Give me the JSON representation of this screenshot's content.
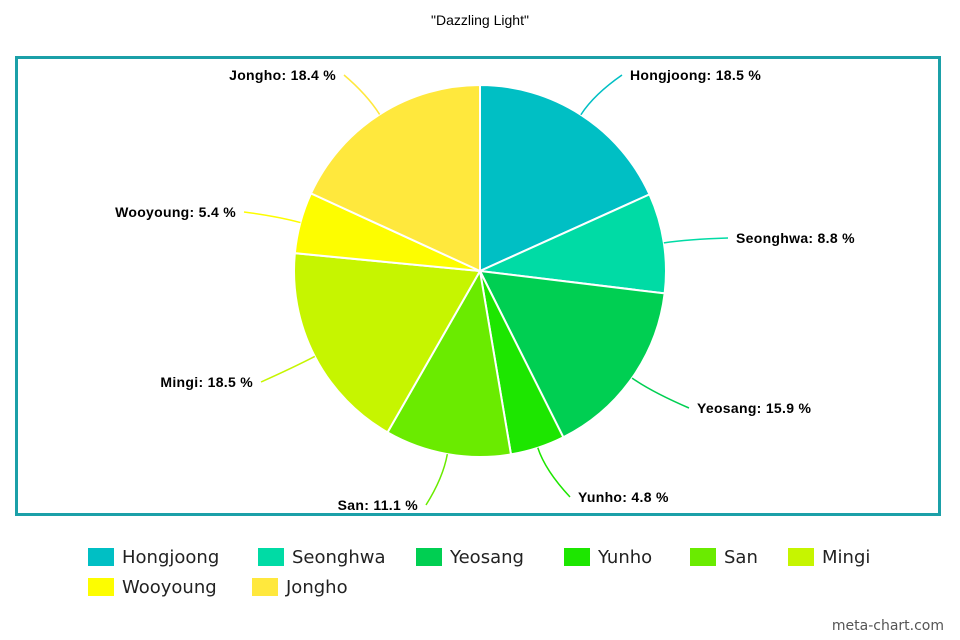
{
  "chart_data": {
    "type": "pie",
    "title": "\"Dazzling Light\"",
    "legend_position": "bottom",
    "slices": [
      {
        "name": "Hongjoong",
        "value": 18.5,
        "label": "Hongjoong: 18.5 %",
        "color": "#00bfc4"
      },
      {
        "name": "Seonghwa",
        "value": 8.8,
        "label": "Seonghwa: 8.8 %",
        "color": "#00dba5"
      },
      {
        "name": "Yeosang",
        "value": 15.9,
        "label": "Yeosang: 15.9 %",
        "color": "#00cf52"
      },
      {
        "name": "Yunho",
        "value": 4.8,
        "label": "Yunho: 4.8 %",
        "color": "#1de600"
      },
      {
        "name": "San",
        "value": 11.1,
        "label": "San: 11.1 %",
        "color": "#6aeb00"
      },
      {
        "name": "Mingi",
        "value": 18.5,
        "label": "Mingi: 18.5 %",
        "color": "#c6f500"
      },
      {
        "name": "Wooyoung",
        "value": 5.4,
        "label": "Wooyoung: 5.4 %",
        "color": "#fdfd00"
      },
      {
        "name": "Jongho",
        "value": 18.4,
        "label": "Jongho: 18.4 %",
        "color": "#ffe83d"
      }
    ]
  },
  "colors": {
    "frame": "#1ba0a8"
  },
  "watermark": "meta-chart.com"
}
